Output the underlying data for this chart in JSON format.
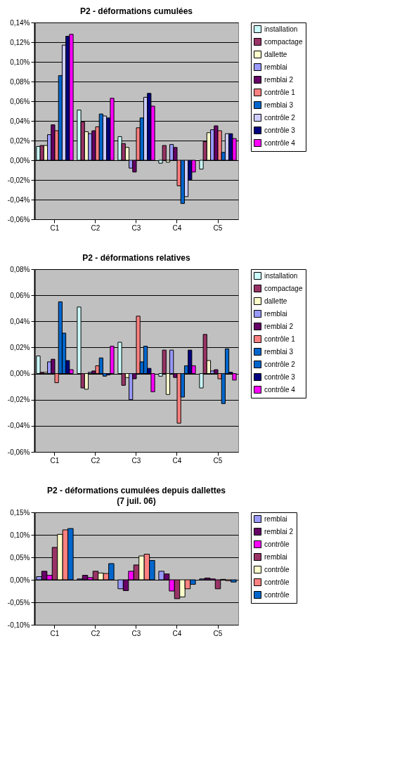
{
  "chart_data": [
    {
      "type": "bar",
      "title": "P2 - déformations cumulées",
      "categories": [
        "C1",
        "C2",
        "C3",
        "C4",
        "C5"
      ],
      "ylim": [
        -0.06,
        0.14
      ],
      "yticks": [
        {
          "value": -0.06,
          "label": "-0,06%"
        },
        {
          "value": -0.04,
          "label": "-0,04%"
        },
        {
          "value": -0.02,
          "label": "-0,02%"
        },
        {
          "value": 0,
          "label": "0,00%"
        },
        {
          "value": 0.02,
          "label": "0,02%"
        },
        {
          "value": 0.04,
          "label": "0,04%"
        },
        {
          "value": 0.06,
          "label": "0,06%"
        },
        {
          "value": 0.08,
          "label": "0,08%"
        },
        {
          "value": 0.1,
          "label": "0,10%"
        },
        {
          "value": 0.12,
          "label": "0,12%"
        },
        {
          "value": 0.14,
          "label": "0,14%"
        }
      ],
      "grid": "y",
      "legend": "right",
      "series": [
        {
          "name": "installation",
          "color": "#ccffff",
          "values": [
            0.014,
            0.051,
            0.024,
            -0.003,
            -0.009
          ]
        },
        {
          "name": "compactage",
          "color": "#993366",
          "values": [
            0.015,
            0.039,
            0.017,
            0.015,
            0.019
          ]
        },
        {
          "name": "dallette",
          "color": "#ffffcc",
          "values": [
            0.015,
            0.029,
            0.013,
            -0.002,
            0.028
          ]
        },
        {
          "name": "remblai",
          "color": "#9999ff",
          "values": [
            0.026,
            0.027,
            -0.008,
            0.016,
            0.031
          ]
        },
        {
          "name": "remblai 2",
          "color": "#660066",
          "values": [
            0.036,
            0.03,
            -0.012,
            0.013,
            0.035
          ]
        },
        {
          "name": "contrôle 1",
          "color": "#ff8080",
          "values": [
            0.03,
            0.034,
            0.033,
            -0.026,
            0.03
          ]
        },
        {
          "name": " remblai 3",
          "color": "#0066cc",
          "values": [
            0.086,
            0.047,
            0.043,
            -0.044,
            0.008
          ]
        },
        {
          "name": "contrôle 2",
          "color": "#ccccff",
          "values": [
            0.117,
            0.045,
            0.064,
            -0.037,
            0.027
          ]
        },
        {
          "name": "contrôle 3",
          "color": "#000080",
          "values": [
            0.126,
            0.043,
            0.068,
            -0.02,
            0.027
          ]
        },
        {
          "name": "contrôle 4",
          "color": "#ff00ff",
          "values": [
            0.128,
            0.063,
            0.055,
            -0.012,
            0.022
          ]
        }
      ]
    },
    {
      "type": "bar",
      "title": "P2 - déformations relatives",
      "categories": [
        "C1",
        "C2",
        "C3",
        "C4",
        "C5"
      ],
      "ylim": [
        -0.06,
        0.08
      ],
      "yticks": [
        {
          "value": -0.06,
          "label": "-0,06%"
        },
        {
          "value": -0.04,
          "label": "-0,04%"
        },
        {
          "value": -0.02,
          "label": "-0,02%"
        },
        {
          "value": 0,
          "label": "0,00%"
        },
        {
          "value": 0.02,
          "label": "0,02%"
        },
        {
          "value": 0.04,
          "label": "0,04%"
        },
        {
          "value": 0.06,
          "label": "0,06%"
        },
        {
          "value": 0.08,
          "label": "0,08%"
        }
      ],
      "grid": "y",
      "legend": "right",
      "series": [
        {
          "name": "installation",
          "color": "#ccffff",
          "values": [
            0.0135,
            0.051,
            0.024,
            -0.002,
            -0.011
          ]
        },
        {
          "name": "compactage",
          "color": "#993366",
          "values": [
            0.001,
            -0.011,
            -0.009,
            0.018,
            0.03
          ]
        },
        {
          "name": "dallette",
          "color": "#ffffcc",
          "values": [
            0.001,
            -0.012,
            -0.003,
            -0.016,
            0.01
          ]
        },
        {
          "name": "remblai",
          "color": "#9999ff",
          "values": [
            0.009,
            0.001,
            -0.02,
            0.018,
            0.002
          ]
        },
        {
          "name": "remblai 2",
          "color": "#660066",
          "values": [
            0.011,
            0.002,
            -0.004,
            -0.003,
            0.003
          ]
        },
        {
          "name": "contrôle 1",
          "color": "#ff8080",
          "values": [
            -0.007,
            0.006,
            0.044,
            -0.038,
            -0.004
          ]
        },
        {
          "name": " remblai 3",
          "color": "#0066cc",
          "values": [
            0.055,
            0.012,
            0.009,
            -0.018,
            -0.023
          ]
        },
        {
          "name": "contrôle 2",
          "color": "#0066cc",
          "values": [
            0.031,
            -0.002,
            0.021,
            0.006,
            0.019
          ]
        },
        {
          "name": "contrôle 3",
          "color": "#000080",
          "values": [
            0.01,
            -0.001,
            0.004,
            0.018,
            0.001
          ]
        },
        {
          "name": "contrôle 4",
          "color": "#ff00ff",
          "values": [
            0.003,
            0.021,
            -0.014,
            0.006,
            -0.005
          ]
        }
      ]
    },
    {
      "type": "bar",
      "title": "P2 - déformations cumulées depuis dallettes",
      "subtitle": "(7 juil. 06)",
      "categories": [
        "C1",
        "C2",
        "C3",
        "C4",
        "C5"
      ],
      "ylim": [
        -0.1,
        0.15
      ],
      "yticks": [
        {
          "value": -0.1,
          "label": "-0,10%"
        },
        {
          "value": -0.05,
          "label": "-0,05%"
        },
        {
          "value": 0,
          "label": "0,00%"
        },
        {
          "value": 0.05,
          "label": "0,05%"
        },
        {
          "value": 0.1,
          "label": "0,10%"
        },
        {
          "value": 0.15,
          "label": "0,15%"
        }
      ],
      "grid": "y",
      "legend": "right",
      "series": [
        {
          "name": "remblai",
          "color": "#9999ff",
          "values": [
            0.007,
            0.002,
            -0.02,
            0.019,
            0.002
          ]
        },
        {
          "name": "remblai 2",
          "color": "#660066",
          "values": [
            0.019,
            0.01,
            -0.024,
            0.013,
            0.004
          ]
        },
        {
          "name": "contrôle",
          "color": "#ff00ff",
          "values": [
            0.01,
            0.005,
            0.019,
            -0.025,
            0.002
          ]
        },
        {
          "name": " remblai",
          "color": "#993366",
          "values": [
            0.072,
            0.019,
            0.033,
            -0.042,
            -0.02
          ]
        },
        {
          "name": "contrôle",
          "color": "#ffffcc",
          "values": [
            0.101,
            0.015,
            0.053,
            -0.038,
            0.001
          ]
        },
        {
          "name": "contrôle",
          "color": "#ff8080",
          "values": [
            0.111,
            0.014,
            0.057,
            -0.02,
            -0.002
          ]
        },
        {
          "name": "contrôle",
          "color": "#0066cc",
          "values": [
            0.114,
            0.036,
            0.043,
            -0.01,
            -0.005
          ]
        }
      ]
    }
  ]
}
